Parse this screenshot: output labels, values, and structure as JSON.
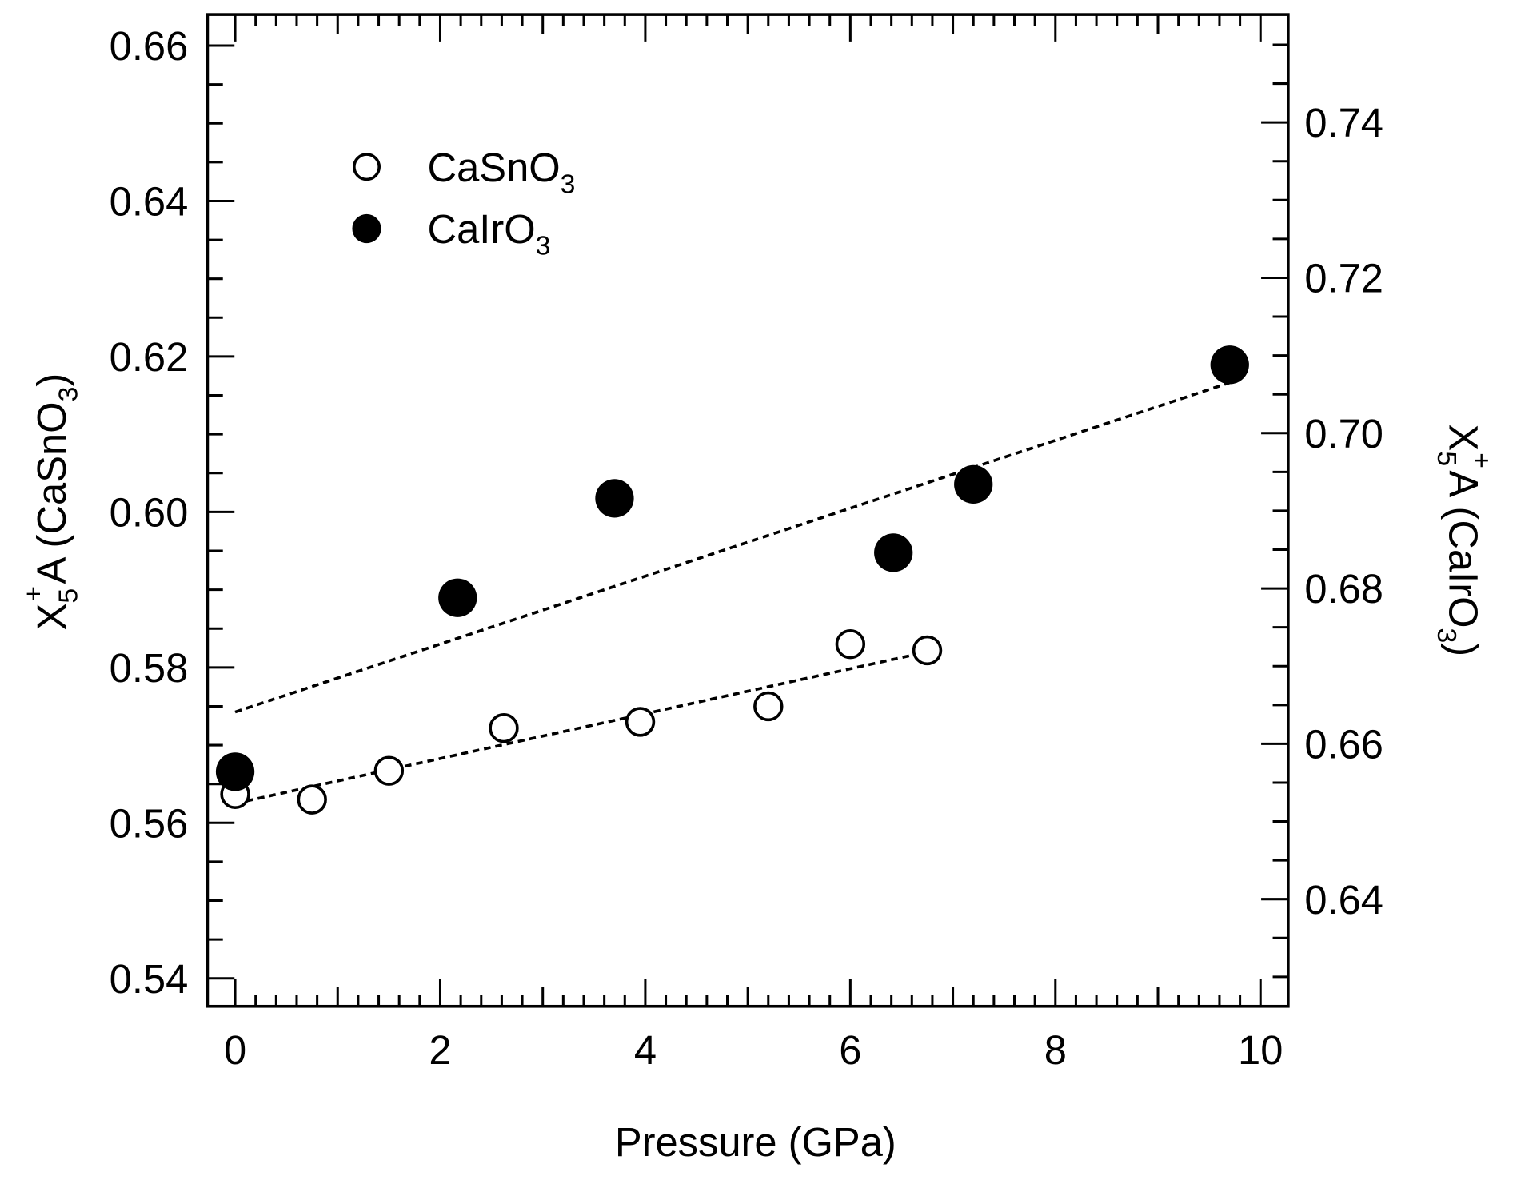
{
  "chart_data": {
    "type": "scatter",
    "xlabel": "Pressure (GPa)",
    "ylabel_left": {
      "base": "X",
      "sub": "5",
      "sup": "+",
      "rest": "A  (CaSnO",
      "sub2": "3",
      "close": ")"
    },
    "ylabel_right": {
      "base": "X",
      "sub": "5",
      "sup": "+",
      "rest": "A  (CaIrO",
      "sub2": "3",
      "close": ")"
    },
    "xlim": [
      -0.27,
      10.27
    ],
    "ylim_left": [
      0.5364,
      0.664
    ],
    "ylim_right": [
      0.6262,
      0.7539
    ],
    "x_ticks": [
      "0",
      "2",
      "4",
      "6",
      "8",
      "10"
    ],
    "y_left_ticks": [
      "0.54",
      "0.56",
      "0.58",
      "0.60",
      "0.62",
      "0.64",
      "0.66"
    ],
    "y_right_ticks": [
      "0.64",
      "0.66",
      "0.68",
      "0.70",
      "0.72",
      "0.74"
    ],
    "legend": {
      "placement": "top-left",
      "entries": [
        {
          "name": "CaSnO",
          "sub": "3",
          "marker": "open-circle"
        },
        {
          "name": "CaIrO",
          "sub": "3",
          "marker": "filled-circle"
        }
      ]
    },
    "series": [
      {
        "name": "CaSnO3",
        "axis": "left",
        "marker": "open",
        "x": [
          0,
          0.75,
          1.5,
          2.62,
          3.95,
          5.2,
          6.0,
          6.75
        ],
        "y": [
          0.5637,
          0.563,
          0.5667,
          0.5722,
          0.573,
          0.575,
          0.583,
          0.5822
        ],
        "fit": {
          "x": [
            0,
            6.75
          ],
          "y": [
            0.5625,
            0.582
          ]
        }
      },
      {
        "name": "CaIrO3",
        "axis": "right",
        "marker": "filled",
        "x": [
          0,
          2.17,
          3.7,
          6.42,
          7.2,
          9.7
        ],
        "y": [
          0.6564,
          0.6788,
          0.6916,
          0.6846,
          0.6934,
          0.7088
        ],
        "fit": {
          "x": [
            0,
            9.7
          ],
          "y": [
            0.6641,
            0.7065
          ]
        }
      }
    ],
    "colors": {
      "ink": "#000000",
      "background": "#ffffff"
    }
  }
}
